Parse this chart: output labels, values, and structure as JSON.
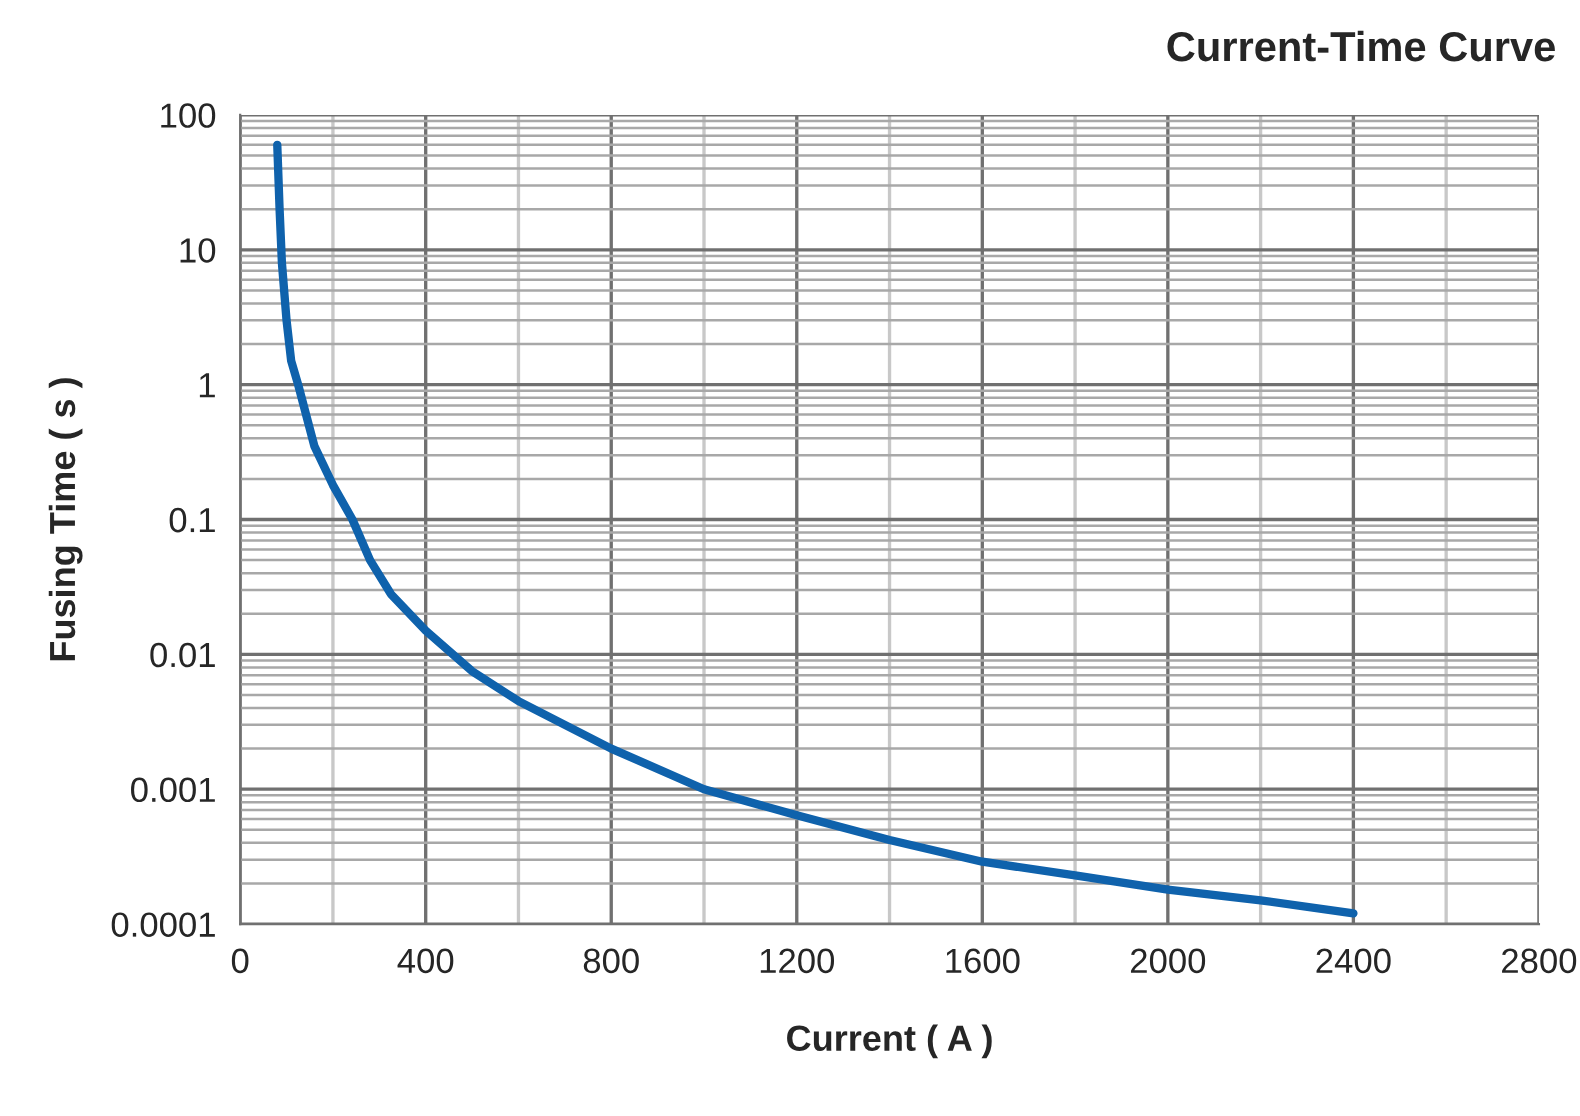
{
  "chart_data": {
    "type": "line",
    "title": "Current-Time Curve",
    "xlabel": "Current ( A )",
    "ylabel": "Fusing Time ( s )",
    "x": [
      80,
      85,
      90,
      100,
      110,
      125,
      160,
      200,
      242,
      280,
      325,
      400,
      500,
      600,
      800,
      1000,
      1200,
      1400,
      1600,
      1800,
      2000,
      2200,
      2400
    ],
    "series": [
      {
        "color": "#0f62ac",
        "values": [
          60,
          20,
          8,
          3,
          1.5,
          1,
          0.35,
          0.18,
          0.1,
          0.05,
          0.028,
          0.015,
          0.0075,
          0.0045,
          0.002,
          0.001,
          0.00064,
          0.00042,
          0.00029,
          0.00023,
          0.00018,
          0.00015,
          0.00012
        ]
      }
    ],
    "log": "y",
    "xlim": [
      0,
      2800
    ],
    "xticks": [
      0,
      400,
      800,
      1200,
      1600,
      2000,
      2400,
      2800
    ],
    "ylim": [
      0.0001,
      100
    ],
    "yticks": [
      {
        "value": 0.0001,
        "label": "0.0001"
      },
      {
        "value": 0.001,
        "label": "0.001"
      },
      {
        "value": 0.01,
        "label": "0.01"
      },
      {
        "value": 0.1,
        "label": "0.1"
      },
      {
        "value": 1,
        "label": "1"
      },
      {
        "value": 10,
        "label": "10"
      },
      {
        "value": 100,
        "label": "100"
      }
    ],
    "grid": true,
    "line_style": "solid",
    "marker": "none"
  }
}
